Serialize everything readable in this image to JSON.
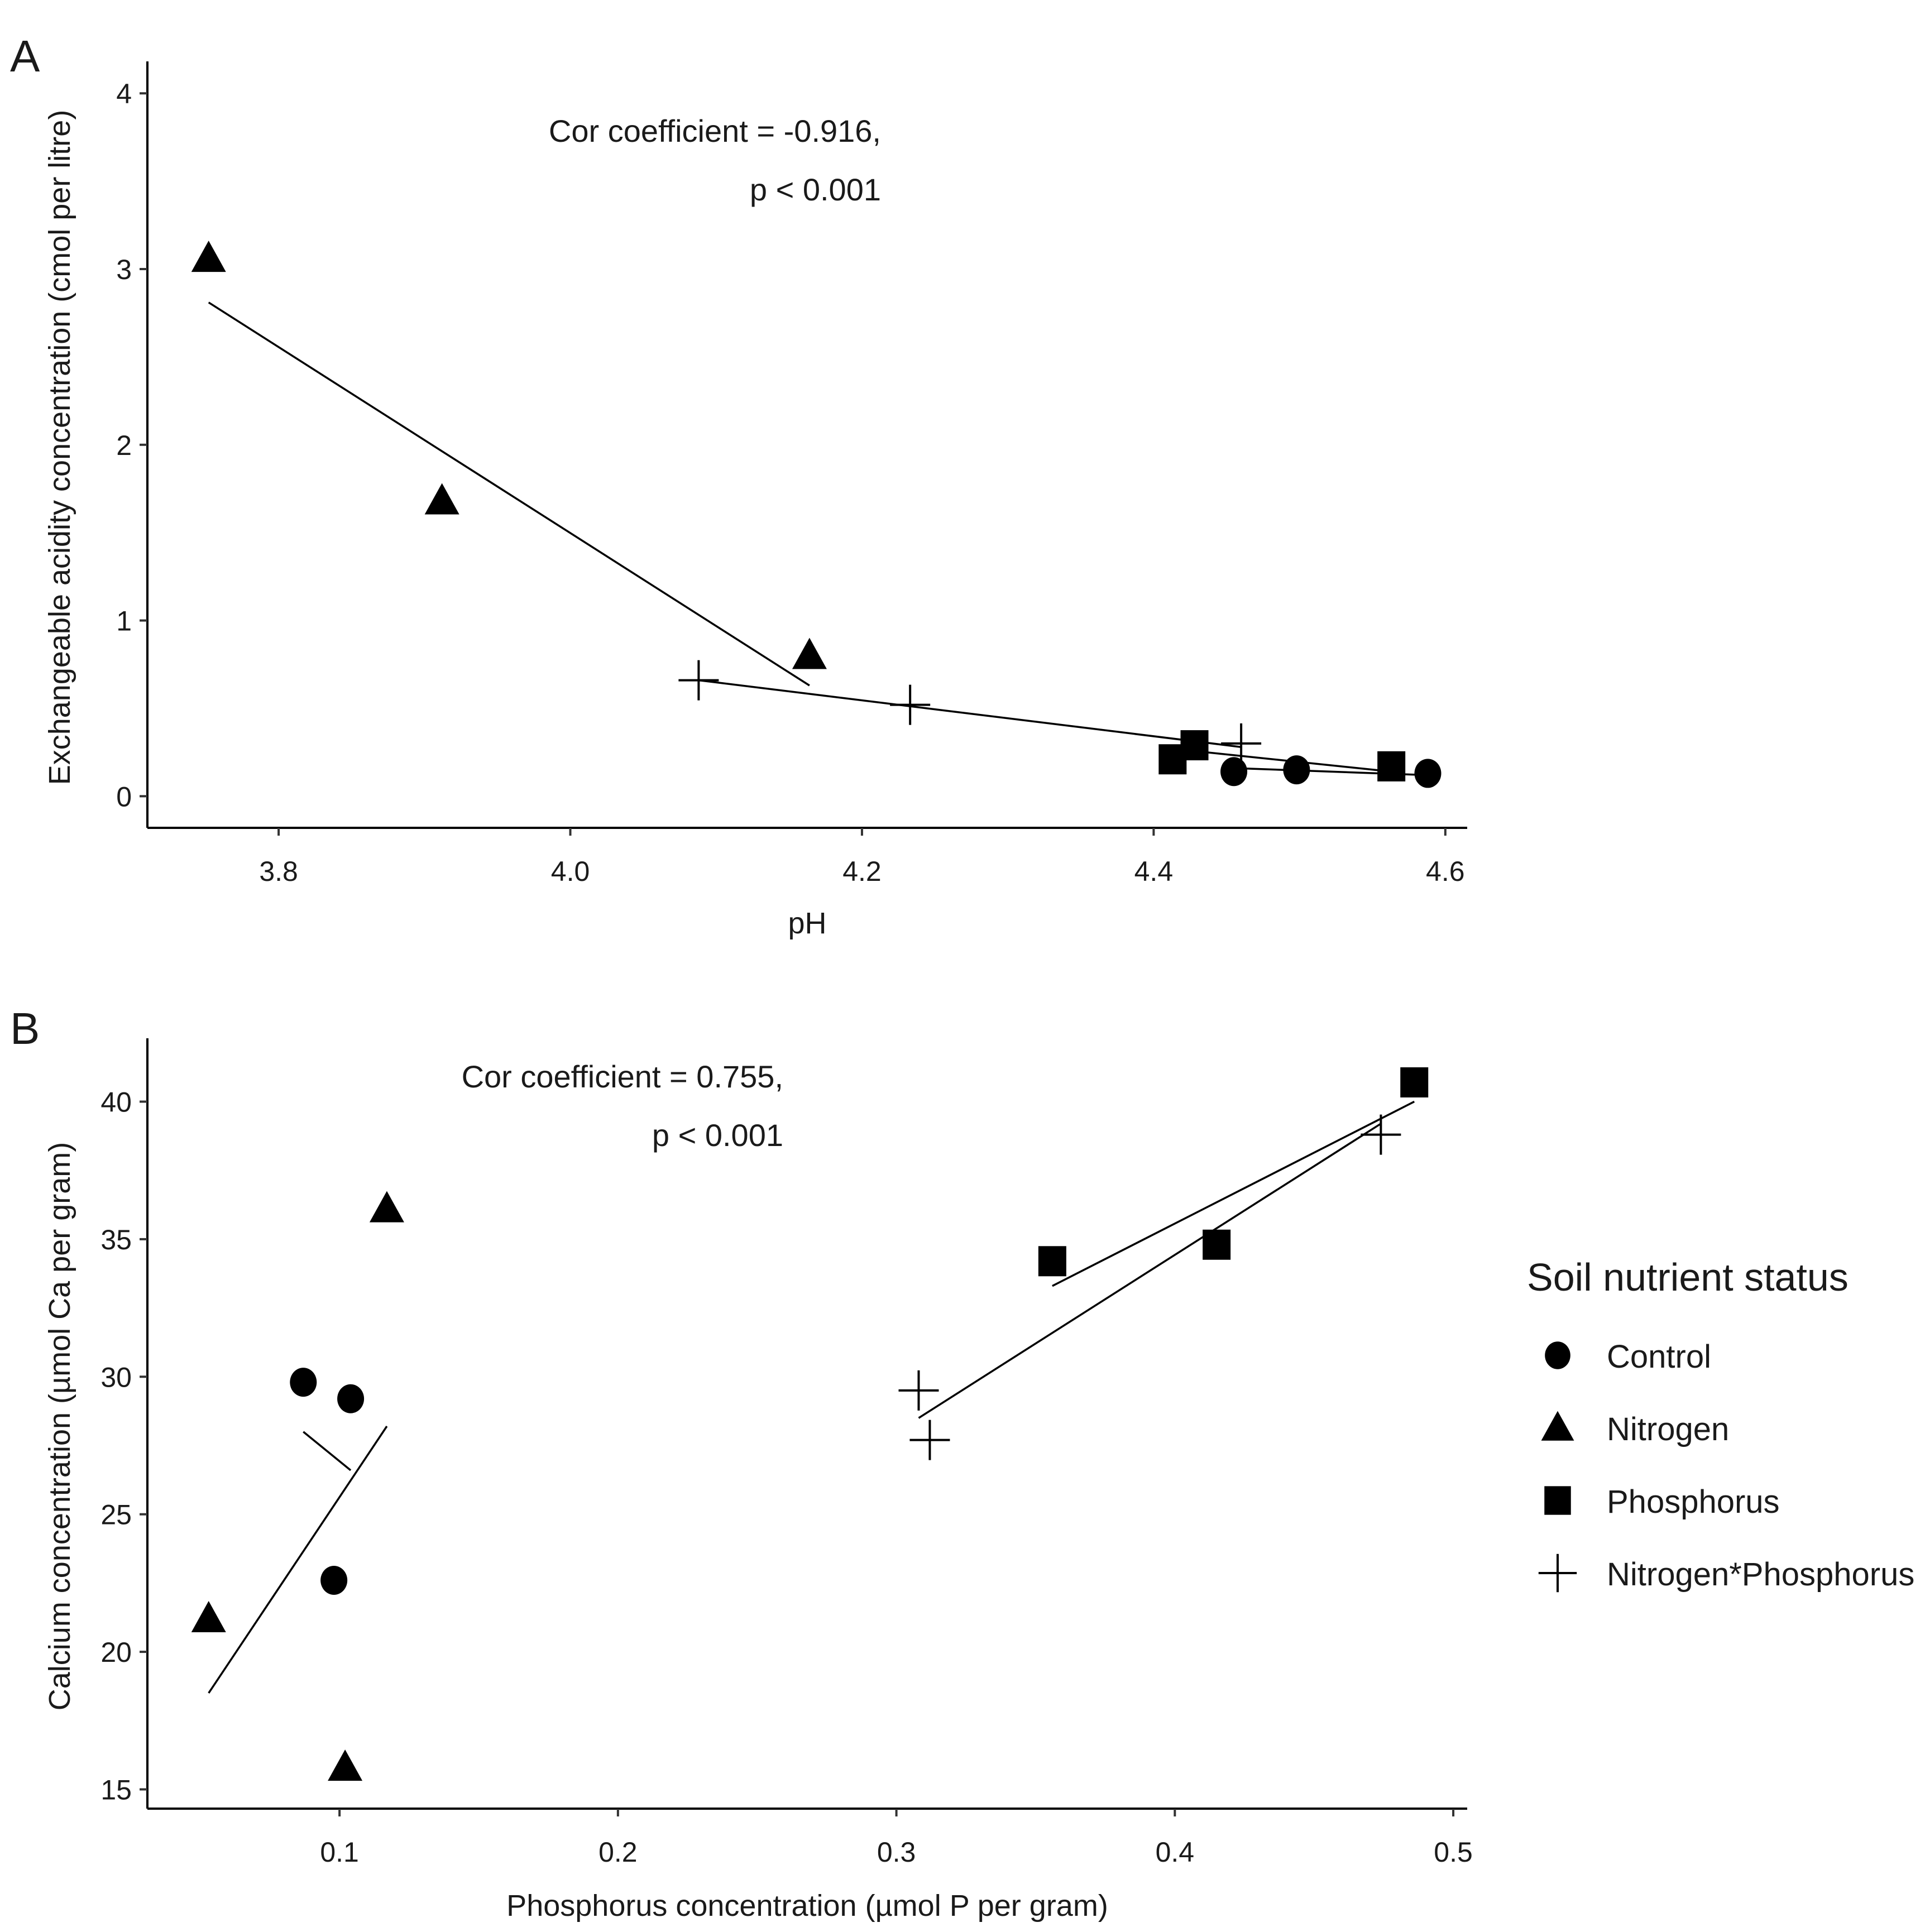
{
  "legend": {
    "title": "Soil  nutrient status",
    "items": [
      {
        "label": "Control",
        "shape": "circle"
      },
      {
        "label": "Nitrogen",
        "shape": "triangle"
      },
      {
        "label": "Phosphorus",
        "shape": "square"
      },
      {
        "label": "Nitrogen*Phosphorus",
        "shape": "cross"
      }
    ]
  },
  "chart_data": [
    {
      "panel": "A",
      "type": "scatter",
      "xlabel": "pH",
      "ylabel": "Exchangeable acidity concentration (cmol per litre)",
      "xlim": [
        3.71,
        4.615
      ],
      "ylim": [
        -0.18,
        4.15
      ],
      "xticks": [
        3.8,
        4.0,
        4.2,
        4.4,
        4.6
      ],
      "xtick_labels": [
        "3.8",
        "4.0",
        "4.2",
        "4.4",
        "4.6"
      ],
      "yticks": [
        0,
        1,
        2,
        3,
        4
      ],
      "ytick_labels": [
        "0",
        "1",
        "2",
        "3",
        "4"
      ],
      "annotation": [
        "Cor coefficient = -0.916,",
        "p < 0.001"
      ],
      "series": [
        {
          "name": "Control",
          "shape": "circle",
          "points": [
            [
              4.455,
              0.14
            ],
            [
              4.498,
              0.15
            ],
            [
              4.588,
              0.13
            ]
          ],
          "fit": [
            [
              4.455,
              0.16
            ],
            [
              4.588,
              0.12
            ]
          ]
        },
        {
          "name": "Nitrogen",
          "shape": "triangle",
          "points": [
            [
              3.752,
              3.06
            ],
            [
              3.912,
              1.68
            ],
            [
              4.164,
              0.8
            ]
          ],
          "fit": [
            [
              3.752,
              2.81
            ],
            [
              4.164,
              0.63
            ]
          ]
        },
        {
          "name": "Phosphorus",
          "shape": "square",
          "points": [
            [
              4.413,
              0.21
            ],
            [
              4.428,
              0.29
            ],
            [
              4.563,
              0.17
            ]
          ],
          "fit": [
            [
              4.413,
              0.27
            ],
            [
              4.563,
              0.14
            ]
          ]
        },
        {
          "name": "Nitrogen*Phosphorus",
          "shape": "cross",
          "points": [
            [
              4.088,
              0.66
            ],
            [
              4.233,
              0.52
            ],
            [
              4.46,
              0.3
            ]
          ],
          "fit": [
            [
              4.088,
              0.66
            ],
            [
              4.46,
              0.28
            ]
          ]
        }
      ]
    },
    {
      "panel": "B",
      "type": "scatter",
      "xlabel": "Phosphorus concentration (µmol P per gram)",
      "ylabel": "Calcium concentration (µmol Ca per gram)",
      "xlim": [
        0.031,
        0.505
      ],
      "ylim": [
        14.3,
        42.1
      ],
      "xticks": [
        0.1,
        0.2,
        0.3,
        0.4,
        0.5
      ],
      "xtick_labels": [
        "0.1",
        "0.2",
        "0.3",
        "0.4",
        "0.5"
      ],
      "yticks": [
        15,
        20,
        25,
        30,
        35,
        40
      ],
      "ytick_labels": [
        "15",
        "20",
        "25",
        "30",
        "35",
        "40"
      ],
      "annotation": [
        "Cor coefficient = 0.755,",
        "p < 0.001"
      ],
      "series": [
        {
          "name": "Control",
          "shape": "circle",
          "points": [
            [
              0.087,
              29.8
            ],
            [
              0.104,
              29.2
            ],
            [
              0.098,
              22.6
            ]
          ],
          "fit": [
            [
              0.087,
              28.0
            ],
            [
              0.104,
              26.6
            ]
          ]
        },
        {
          "name": "Nitrogen",
          "shape": "triangle",
          "points": [
            [
              0.053,
              21.2
            ],
            [
              0.117,
              36.1
            ],
            [
              0.102,
              15.8
            ]
          ],
          "fit": [
            [
              0.053,
              18.5
            ],
            [
              0.117,
              28.2
            ]
          ]
        },
        {
          "name": "Phosphorus",
          "shape": "square",
          "points": [
            [
              0.356,
              34.2
            ],
            [
              0.415,
              34.8
            ],
            [
              0.486,
              40.7
            ]
          ],
          "fit": [
            [
              0.356,
              33.3
            ],
            [
              0.486,
              40.0
            ]
          ]
        },
        {
          "name": "Nitrogen*Phosphorus",
          "shape": "cross",
          "points": [
            [
              0.308,
              29.5
            ],
            [
              0.312,
              27.7
            ],
            [
              0.474,
              38.8
            ]
          ],
          "fit": [
            [
              0.308,
              28.5
            ],
            [
              0.474,
              39.2
            ]
          ]
        }
      ]
    }
  ]
}
